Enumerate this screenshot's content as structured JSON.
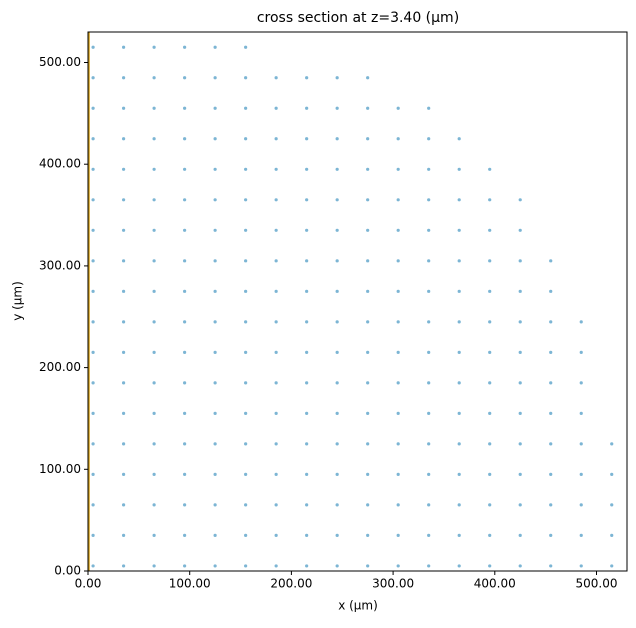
{
  "chart_data": {
    "type": "scatter",
    "title": "cross section at z=3.40 (µm)",
    "x_label": "x (µm)",
    "y_label": "y (µm)",
    "color": "#5ba3c9",
    "vline": {
      "x": 1,
      "color": "#d4a017"
    },
    "xlim": [
      0,
      530
    ],
    "ylim": [
      0,
      530
    ],
    "xticks": [
      {
        "value": 0,
        "label": "0.00"
      },
      {
        "value": 100,
        "label": "100.00"
      },
      {
        "value": 200,
        "label": "200.00"
      },
      {
        "value": 300,
        "label": "300.00"
      },
      {
        "value": 400,
        "label": "400.00"
      },
      {
        "value": 500,
        "label": "500.00"
      }
    ],
    "yticks": [
      {
        "value": 0,
        "label": "0.00"
      },
      {
        "value": 100,
        "label": "100.00"
      },
      {
        "value": 200,
        "label": "200.00"
      },
      {
        "value": 300,
        "label": "300.00"
      },
      {
        "value": 400,
        "label": "400.00"
      },
      {
        "value": 500,
        "label": "500.00"
      }
    ],
    "x": [
      5,
      35,
      65,
      95,
      125,
      155,
      185,
      215,
      245,
      275,
      305,
      335,
      365,
      395,
      425,
      455,
      485,
      515,
      5,
      35,
      65,
      95,
      125,
      155,
      185,
      215,
      245,
      275,
      305,
      335,
      365,
      395,
      425,
      455,
      485,
      515,
      5,
      35,
      65,
      95,
      125,
      155,
      185,
      215,
      245,
      275,
      305,
      335,
      365,
      395,
      425,
      455,
      485,
      515,
      5,
      35,
      65,
      95,
      125,
      155,
      185,
      215,
      245,
      275,
      305,
      335,
      365,
      395,
      425,
      455,
      485,
      515,
      5,
      35,
      65,
      95,
      125,
      155,
      185,
      215,
      245,
      275,
      305,
      335,
      365,
      395,
      425,
      455,
      485,
      515,
      5,
      35,
      65,
      95,
      125,
      155,
      185,
      215,
      245,
      275,
      305,
      335,
      365,
      395,
      425,
      455,
      485,
      5,
      35,
      65,
      95,
      125,
      155,
      185,
      215,
      245,
      275,
      305,
      335,
      365,
      395,
      425,
      455,
      485,
      5,
      35,
      65,
      95,
      125,
      155,
      185,
      215,
      245,
      275,
      305,
      335,
      365,
      395,
      425,
      455,
      485,
      5,
      35,
      65,
      95,
      125,
      155,
      185,
      215,
      245,
      275,
      305,
      335,
      365,
      395,
      425,
      455,
      485,
      5,
      35,
      65,
      95,
      125,
      155,
      185,
      215,
      245,
      275,
      305,
      335,
      365,
      395,
      425,
      455,
      5,
      35,
      65,
      95,
      125,
      155,
      185,
      215,
      245,
      275,
      305,
      335,
      365,
      395,
      425,
      455,
      5,
      35,
      65,
      95,
      125,
      155,
      185,
      215,
      245,
      275,
      305,
      335,
      365,
      395,
      425,
      5,
      35,
      65,
      95,
      125,
      155,
      185,
      215,
      245,
      275,
      305,
      335,
      365,
      395,
      425,
      5,
      35,
      65,
      95,
      125,
      155,
      185,
      215,
      245,
      275,
      305,
      335,
      365,
      395,
      5,
      35,
      65,
      95,
      125,
      155,
      185,
      215,
      245,
      275,
      305,
      335,
      365,
      5,
      35,
      65,
      95,
      125,
      155,
      185,
      215,
      245,
      275,
      305,
      335,
      5,
      35,
      65,
      95,
      125,
      155,
      185,
      215,
      245,
      275,
      5,
      35,
      65,
      95,
      125,
      155
    ],
    "y": [
      5,
      5,
      5,
      5,
      5,
      5,
      5,
      5,
      5,
      5,
      5,
      5,
      5,
      5,
      5,
      5,
      5,
      5,
      35,
      35,
      35,
      35,
      35,
      35,
      35,
      35,
      35,
      35,
      35,
      35,
      35,
      35,
      35,
      35,
      35,
      35,
      65,
      65,
      65,
      65,
      65,
      65,
      65,
      65,
      65,
      65,
      65,
      65,
      65,
      65,
      65,
      65,
      65,
      65,
      95,
      95,
      95,
      95,
      95,
      95,
      95,
      95,
      95,
      95,
      95,
      95,
      95,
      95,
      95,
      95,
      95,
      95,
      125,
      125,
      125,
      125,
      125,
      125,
      125,
      125,
      125,
      125,
      125,
      125,
      125,
      125,
      125,
      125,
      125,
      125,
      155,
      155,
      155,
      155,
      155,
      155,
      155,
      155,
      155,
      155,
      155,
      155,
      155,
      155,
      155,
      155,
      155,
      185,
      185,
      185,
      185,
      185,
      185,
      185,
      185,
      185,
      185,
      185,
      185,
      185,
      185,
      185,
      185,
      185,
      215,
      215,
      215,
      215,
      215,
      215,
      215,
      215,
      215,
      215,
      215,
      215,
      215,
      215,
      215,
      215,
      215,
      245,
      245,
      245,
      245,
      245,
      245,
      245,
      245,
      245,
      245,
      245,
      245,
      245,
      245,
      245,
      245,
      245,
      275,
      275,
      275,
      275,
      275,
      275,
      275,
      275,
      275,
      275,
      275,
      275,
      275,
      275,
      275,
      275,
      305,
      305,
      305,
      305,
      305,
      305,
      305,
      305,
      305,
      305,
      305,
      305,
      305,
      305,
      305,
      305,
      335,
      335,
      335,
      335,
      335,
      335,
      335,
      335,
      335,
      335,
      335,
      335,
      335,
      335,
      335,
      365,
      365,
      365,
      365,
      365,
      365,
      365,
      365,
      365,
      365,
      365,
      365,
      365,
      365,
      365,
      395,
      395,
      395,
      395,
      395,
      395,
      395,
      395,
      395,
      395,
      395,
      395,
      395,
      395,
      425,
      425,
      425,
      425,
      425,
      425,
      425,
      425,
      425,
      425,
      425,
      425,
      425,
      455,
      455,
      455,
      455,
      455,
      455,
      455,
      455,
      455,
      455,
      455,
      455,
      485,
      485,
      485,
      485,
      485,
      485,
      485,
      485,
      485,
      485,
      515,
      515,
      515,
      515,
      515,
      515
    ]
  }
}
